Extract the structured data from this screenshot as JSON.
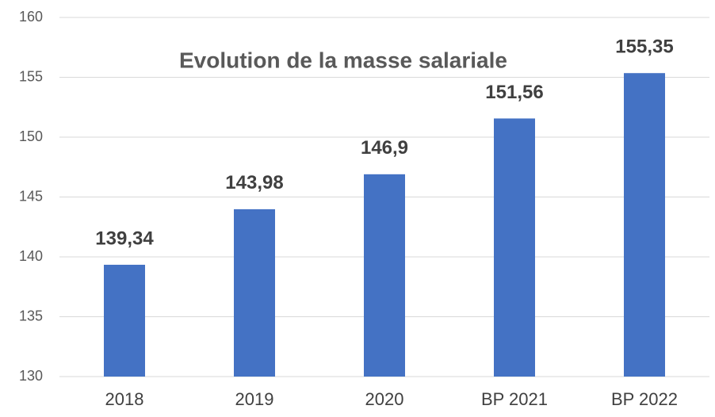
{
  "chart_data": {
    "type": "bar",
    "title": "Evolution de la masse salariale",
    "categories": [
      "2018",
      "2019",
      "2020",
      "BP 2021",
      "BP 2022"
    ],
    "values": [
      139.34,
      143.98,
      146.9,
      151.56,
      155.35
    ],
    "value_labels": [
      "139,34",
      "143,98",
      "146,9",
      "151,56",
      "155,35"
    ],
    "color": "#4472c4",
    "ylim": [
      130,
      160
    ],
    "yticks": [
      130,
      135,
      140,
      145,
      150,
      155,
      160
    ],
    "grid": true
  }
}
